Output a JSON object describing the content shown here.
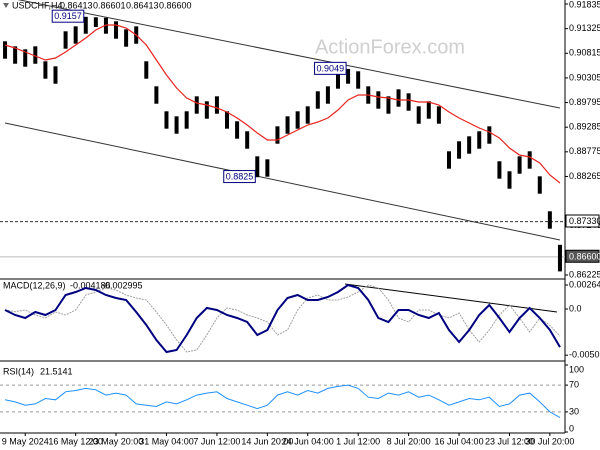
{
  "chart_data": [
    {
      "type": "range_bar",
      "symbol": "USDCHF,H4",
      "quote": [
        "0.86413",
        "0.86601",
        "0.86413",
        "0.86600"
      ],
      "watermark": "ActionForex.com",
      "categories": [
        null,
        null,
        "9 May 2024",
        null,
        null,
        null,
        null,
        "16 May 12:00",
        null,
        null,
        null,
        "23 May 20:00",
        null,
        null,
        null,
        null,
        "31 May 04:00",
        null,
        null,
        null,
        null,
        "7 Jun 12:00",
        null,
        null,
        null,
        null,
        "14 Jun 20:00",
        null,
        null,
        null,
        "24 Jun 04:00",
        null,
        null,
        null,
        null,
        "1 Jul 12:00",
        null,
        null,
        null,
        null,
        "8 Jul 20:00",
        null,
        null,
        null,
        null,
        "16 Jul 04:00",
        null,
        null,
        null,
        null,
        "23 Jul 12:00",
        null,
        null,
        null,
        "30 Jul 20:00",
        null
      ],
      "color": "#000000",
      "high": [
        0.91063,
        0.90959,
        0.90897,
        0.90959,
        0.90649,
        0.90545,
        0.9127,
        0.91373,
        0.9157,
        0.9156,
        0.9155,
        0.91477,
        0.91311,
        0.91373,
        0.90649,
        0.90131,
        0.89614,
        0.8951,
        0.89614,
        0.89924,
        0.89821,
        0.89924,
        0.89614,
        0.89407,
        0.892,
        0.88682,
        0.8862,
        0.89303,
        0.8951,
        0.89614,
        0.89717,
        0.90028,
        0.90131,
        0.90442,
        0.9049,
        0.90442,
        0.90131,
        0.90028,
        0.89924,
        0.90069,
        0.89986,
        0.89717,
        0.89821,
        0.89717,
        0.88786,
        0.88993,
        0.89096,
        0.892,
        0.89303,
        0.88579,
        0.88372,
        0.88682,
        0.88786,
        0.88268,
        0.87544,
        0.8685
      ],
      "low": [
        0.90703,
        0.90599,
        0.90537,
        0.90599,
        0.90289,
        0.90185,
        0.9091,
        0.91013,
        0.9122,
        0.9136,
        0.9122,
        0.91117,
        0.90951,
        0.91013,
        0.90289,
        0.89771,
        0.89254,
        0.8915,
        0.89254,
        0.89564,
        0.89461,
        0.89564,
        0.89254,
        0.89047,
        0.8884,
        0.8825,
        0.8826,
        0.88943,
        0.8915,
        0.89254,
        0.89357,
        0.89668,
        0.89771,
        0.90082,
        0.90185,
        0.90082,
        0.89771,
        0.89668,
        0.89564,
        0.89709,
        0.89626,
        0.89357,
        0.89461,
        0.89357,
        0.88426,
        0.88633,
        0.88736,
        0.8884,
        0.88943,
        0.88219,
        0.88012,
        0.88322,
        0.88426,
        0.87908,
        0.87184,
        0.863
      ],
      "ma": {
        "color": "#e8241e",
        "values": [
          0.90986,
          0.90924,
          0.90841,
          0.90759,
          0.90676,
          0.90717,
          0.90841,
          0.90986,
          0.91131,
          0.91297,
          0.914,
          0.914,
          0.91338,
          0.91193,
          0.90986,
          0.90676,
          0.90365,
          0.90096,
          0.89889,
          0.89786,
          0.89744,
          0.89682,
          0.89599,
          0.89475,
          0.8933,
          0.89165,
          0.8902,
          0.8902,
          0.89123,
          0.89227,
          0.8933,
          0.89392,
          0.89475,
          0.89641,
          0.89848,
          0.89951,
          0.89951,
          0.8991,
          0.89889,
          0.89848,
          0.89848,
          0.89806,
          0.89806,
          0.89744,
          0.89599,
          0.89475,
          0.89372,
          0.89268,
          0.89185,
          0.89061,
          0.88854,
          0.88709,
          0.88668,
          0.88544,
          0.88295,
          0.8813
        ]
      },
      "channel": {
        "color": "#333333",
        "upper": [
          0.9198,
          0.89682
        ],
        "lower": [
          0.89372,
          0.8695
        ]
      },
      "annotations": [
        {
          "index": 8,
          "value": 0.9157
        },
        {
          "index": 34,
          "value": 0.9049
        },
        {
          "index": 25,
          "value": 0.8825
        }
      ],
      "hlines": [
        {
          "value": 0.8733,
          "label": "0.87330"
        },
        {
          "value": 0.866,
          "label": "0.86600"
        }
      ],
      "ylim": [
        0.86163,
        0.91918
      ],
      "yticks": [
        0.91835,
        0.91325,
        0.90815,
        0.90305,
        0.89795,
        0.89285,
        0.88775,
        0.88265,
        0.87245,
        0.86225
      ]
    },
    {
      "type": "line",
      "title": "MACD(12,26,9)",
      "series": [
        {
          "color": "#000080",
          "values": [
            -0.00011,
            -0.00066,
            -0.00099,
            -0.00033,
            -0.00066,
            -0.00011,
            0.00154,
            0.00187,
            0.00231,
            0.00209,
            0.00154,
            0.00121,
            0.00099,
            -0.00033,
            -0.00176,
            -0.00341,
            -0.00473,
            -0.00451,
            -0.00286,
            -0.00099,
            0.00011,
            -0.00011,
            -0.00066,
            -0.00099,
            -0.00143,
            -0.00286,
            -0.00231,
            -0.00011,
            0.00121,
            0.00154,
            0.00099,
            0.00099,
            0.00132,
            0.00187,
            0.00264,
            0.00231,
            0.00099,
            -0.00099,
            -0.00143,
            -0.00011,
            -0.00011,
            -0.00066,
            -0.00099,
            -0.00044,
            -0.00231,
            -0.00363,
            -0.00231,
            -0.00066,
            0.00044,
            -0.00099,
            -0.00253,
            -0.00099,
            0.00011,
            -0.00099,
            -0.00231,
            -0.004186
          ]
        },
        {
          "color": "#a0a0a0",
          "values": [
            -0.0001,
            -0.0003,
            -0.00011,
            -0.00066,
            -0.00099,
            -0.00033,
            -0.00066,
            -0.00011,
            0.00154,
            0.00187,
            0.00231,
            0.00209,
            0.00154,
            0.00121,
            0.00099,
            -0.00033,
            -0.00176,
            -0.00341,
            -0.00473,
            -0.00451,
            -0.00286,
            -0.00099,
            0.00011,
            -0.00011,
            -0.00066,
            -0.00099,
            -0.00143,
            -0.00286,
            -0.00231,
            -0.00011,
            0.00121,
            0.00154,
            0.00099,
            0.00099,
            0.00132,
            0.00187,
            0.00264,
            0.00231,
            0.00099,
            -0.00099,
            -0.00143,
            -0.00011,
            -0.00011,
            -0.00066,
            -0.00099,
            -0.00044,
            -0.00231,
            -0.00363,
            -0.00231,
            -0.00066,
            0.00044,
            -0.00099,
            -0.00253,
            -0.00099,
            -0.0018,
            -0.002995
          ]
        }
      ],
      "ylim": [
        -0.00539,
        0.00319
      ],
      "yticks": [
        0.00264,
        {
          "value": 0,
          "label": "0.0"
        },
        -0.005077
      ]
    },
    {
      "type": "line",
      "title": "RSI(14)",
      "grid": true,
      "series": [
        {
          "color": "#1e90ff",
          "values": [
            48,
            45,
            40,
            42,
            50,
            48,
            60,
            62,
            65,
            63,
            55,
            58,
            55,
            42,
            40,
            38,
            45,
            42,
            48,
            55,
            58,
            60,
            50,
            45,
            40,
            35,
            40,
            55,
            60,
            55,
            62,
            58,
            65,
            68,
            70,
            65,
            52,
            50,
            58,
            55,
            60,
            52,
            55,
            48,
            40,
            45,
            50,
            48,
            52,
            38,
            42,
            55,
            58,
            45,
            30,
            21.5141
          ]
        }
      ],
      "ylim": [
        0,
        100
      ],
      "yticks": [
        100,
        70,
        30,
        0
      ]
    }
  ]
}
